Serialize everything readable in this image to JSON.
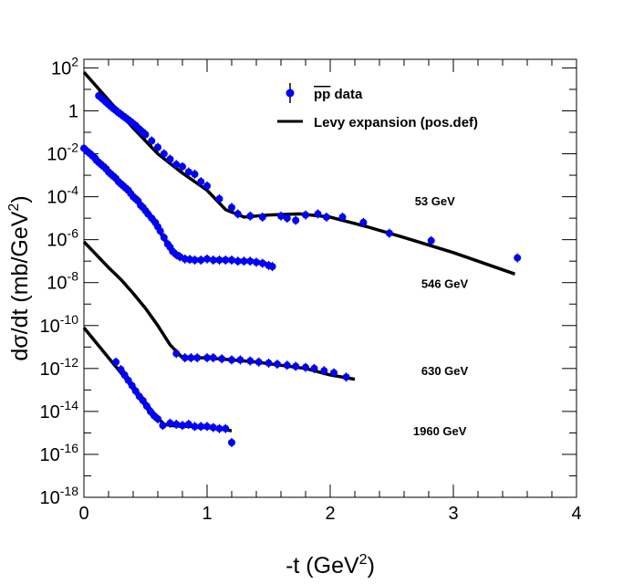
{
  "chart_data": {
    "type": "scatter",
    "xlabel": "-t (GeV",
    "xlabel_sup": "2",
    "xlabel_close": ")",
    "ylabel": "dσ/dt (mb/GeV",
    "ylabel_sup": "2",
    "ylabel_close": ")",
    "xlim": [
      0,
      4
    ],
    "ylim_log10": [
      -18,
      2.4
    ],
    "yscale": "log",
    "x_ticks": [
      {
        "value": 0,
        "label": "0"
      },
      {
        "value": 1,
        "label": "1"
      },
      {
        "value": 2,
        "label": "2"
      },
      {
        "value": 3,
        "label": "3"
      },
      {
        "value": 4,
        "label": "4"
      }
    ],
    "y_ticks": [
      {
        "exp": 2,
        "base": "10",
        "sup": "2"
      },
      {
        "exp": 0,
        "base": "1",
        "sup": ""
      },
      {
        "exp": -2,
        "base": "10",
        "sup": "-2"
      },
      {
        "exp": -4,
        "base": "10",
        "sup": "-4"
      },
      {
        "exp": -6,
        "base": "10",
        "sup": "-6"
      },
      {
        "exp": -8,
        "base": "10",
        "sup": "-8"
      },
      {
        "exp": -10,
        "base": "10",
        "sup": "-10"
      },
      {
        "exp": -12,
        "base": "10",
        "sup": "-12"
      },
      {
        "exp": -14,
        "base": "10",
        "sup": "-14"
      },
      {
        "exp": -16,
        "base": "10",
        "sup": "-16"
      },
      {
        "exp": -18,
        "base": "10",
        "sup": "-18"
      }
    ],
    "legend": {
      "position": "top-right",
      "data_label_main": "pp",
      "data_label_tail": " data",
      "fit_label": "Levy expansion (pos.def)"
    },
    "colors": {
      "data": "#0000ff",
      "fit": "#000000"
    },
    "series": [
      {
        "name": "53 GeV",
        "label_at": {
          "x": 2.85,
          "log10y": -4.4
        },
        "fit": [
          [
            0,
            1.8
          ],
          [
            0.2,
            0.5
          ],
          [
            0.4,
            -0.8
          ],
          [
            0.6,
            -2
          ],
          [
            0.8,
            -2.9
          ],
          [
            1.0,
            -3.7
          ],
          [
            1.15,
            -4.6
          ],
          [
            1.3,
            -4.95
          ],
          [
            1.5,
            -4.85
          ],
          [
            1.75,
            -4.8
          ],
          [
            2.0,
            -4.95
          ],
          [
            2.3,
            -5.4
          ],
          [
            2.6,
            -5.9
          ],
          [
            3.0,
            -6.6
          ],
          [
            3.5,
            -7.6
          ]
        ],
        "points": [
          [
            0.12,
            0.7
          ],
          [
            0.15,
            0.55
          ],
          [
            0.18,
            0.4
          ],
          [
            0.2,
            0.3
          ],
          [
            0.22,
            0.2
          ],
          [
            0.24,
            0.1
          ],
          [
            0.26,
            0.02
          ],
          [
            0.28,
            -0.08
          ],
          [
            0.3,
            -0.16
          ],
          [
            0.32,
            -0.25
          ],
          [
            0.34,
            -0.33
          ],
          [
            0.36,
            -0.42
          ],
          [
            0.38,
            -0.5
          ],
          [
            0.4,
            -0.6
          ],
          [
            0.42,
            -0.68
          ],
          [
            0.45,
            -0.85
          ],
          [
            0.48,
            -1.0
          ],
          [
            0.5,
            -1.1
          ],
          [
            0.55,
            -1.4
          ],
          [
            0.6,
            -1.7
          ],
          [
            0.65,
            -2.0
          ],
          [
            0.7,
            -2.25
          ],
          [
            0.75,
            -2.5
          ],
          [
            0.8,
            -2.6
          ],
          [
            0.85,
            -2.85
          ],
          [
            0.9,
            -2.95
          ],
          [
            0.95,
            -3.3
          ],
          [
            1.0,
            -3.5
          ],
          [
            1.1,
            -4.1
          ],
          [
            1.2,
            -4.5
          ],
          [
            1.25,
            -4.8
          ],
          [
            1.35,
            -4.9
          ],
          [
            1.45,
            -4.95
          ],
          [
            1.6,
            -4.9
          ],
          [
            1.65,
            -5.0
          ],
          [
            1.72,
            -5.1
          ],
          [
            1.8,
            -4.85
          ],
          [
            1.9,
            -4.8
          ],
          [
            1.97,
            -4.95
          ],
          [
            2.1,
            -4.95
          ],
          [
            2.27,
            -5.2
          ],
          [
            2.48,
            -5.7
          ],
          [
            2.82,
            -6.05
          ],
          [
            3.52,
            -6.85
          ]
        ]
      },
      {
        "name": "546 GeV",
        "label_at": {
          "x": 2.93,
          "log10y": -8.25
        },
        "fit": [
          [
            0,
            -1.8
          ],
          [
            0.1,
            -2.3
          ],
          [
            0.2,
            -2.9
          ],
          [
            0.3,
            -3.45
          ],
          [
            0.4,
            -4.0
          ],
          [
            0.5,
            -4.7
          ],
          [
            0.6,
            -5.5
          ],
          [
            0.68,
            -6.2
          ],
          [
            0.75,
            -6.75
          ],
          [
            0.85,
            -6.95
          ],
          [
            1.0,
            -6.9
          ],
          [
            1.2,
            -6.95
          ],
          [
            1.4,
            -7.0
          ],
          [
            1.55,
            -7.2
          ]
        ],
        "points": [
          [
            0.0,
            -1.75
          ],
          [
            0.03,
            -1.9
          ],
          [
            0.05,
            -2.0
          ],
          [
            0.07,
            -2.1
          ],
          [
            0.09,
            -2.2
          ],
          [
            0.1,
            -2.3
          ],
          [
            0.12,
            -2.4
          ],
          [
            0.14,
            -2.5
          ],
          [
            0.16,
            -2.6
          ],
          [
            0.18,
            -2.7
          ],
          [
            0.2,
            -2.85
          ],
          [
            0.22,
            -2.95
          ],
          [
            0.24,
            -3.05
          ],
          [
            0.26,
            -3.15
          ],
          [
            0.28,
            -3.3
          ],
          [
            0.3,
            -3.4
          ],
          [
            0.32,
            -3.5
          ],
          [
            0.34,
            -3.6
          ],
          [
            0.36,
            -3.7
          ],
          [
            0.38,
            -3.85
          ],
          [
            0.4,
            -4.0
          ],
          [
            0.42,
            -4.1
          ],
          [
            0.44,
            -4.2
          ],
          [
            0.46,
            -4.4
          ],
          [
            0.48,
            -4.5
          ],
          [
            0.5,
            -4.65
          ],
          [
            0.52,
            -4.8
          ],
          [
            0.55,
            -5.0
          ],
          [
            0.58,
            -5.2
          ],
          [
            0.6,
            -5.4
          ],
          [
            0.62,
            -5.6
          ],
          [
            0.65,
            -5.9
          ],
          [
            0.68,
            -6.2
          ],
          [
            0.7,
            -6.35
          ],
          [
            0.72,
            -6.55
          ],
          [
            0.75,
            -6.7
          ],
          [
            0.78,
            -6.8
          ],
          [
            0.82,
            -6.9
          ],
          [
            0.86,
            -6.92
          ],
          [
            0.9,
            -6.95
          ],
          [
            0.95,
            -6.95
          ],
          [
            1.0,
            -6.9
          ],
          [
            1.05,
            -6.95
          ],
          [
            1.1,
            -6.95
          ],
          [
            1.15,
            -6.95
          ],
          [
            1.2,
            -6.95
          ],
          [
            1.25,
            -7.0
          ],
          [
            1.3,
            -7.0
          ],
          [
            1.35,
            -7.0
          ],
          [
            1.4,
            -7.05
          ],
          [
            1.45,
            -7.1
          ],
          [
            1.5,
            -7.2
          ],
          [
            1.53,
            -7.25
          ]
        ]
      },
      {
        "name": "630 GeV",
        "label_at": {
          "x": 2.93,
          "log10y": -12.3
        },
        "fit": [
          [
            0,
            -6.1
          ],
          [
            0.1,
            -6.7
          ],
          [
            0.2,
            -7.3
          ],
          [
            0.3,
            -7.85
          ],
          [
            0.4,
            -8.5
          ],
          [
            0.5,
            -9.2
          ],
          [
            0.6,
            -10.0
          ],
          [
            0.7,
            -10.9
          ],
          [
            0.75,
            -11.2
          ],
          [
            0.8,
            -11.5
          ],
          [
            0.9,
            -11.5
          ],
          [
            1.0,
            -11.5
          ],
          [
            1.2,
            -11.6
          ],
          [
            1.4,
            -11.7
          ],
          [
            1.6,
            -11.85
          ],
          [
            1.8,
            -12.0
          ],
          [
            2.0,
            -12.3
          ],
          [
            2.2,
            -12.5
          ]
        ],
        "points": [
          [
            0.75,
            -11.3
          ],
          [
            0.82,
            -11.5
          ],
          [
            0.87,
            -11.5
          ],
          [
            0.92,
            -11.5
          ],
          [
            1.0,
            -11.5
          ],
          [
            1.05,
            -11.5
          ],
          [
            1.12,
            -11.55
          ],
          [
            1.2,
            -11.6
          ],
          [
            1.27,
            -11.6
          ],
          [
            1.35,
            -11.65
          ],
          [
            1.42,
            -11.7
          ],
          [
            1.5,
            -11.75
          ],
          [
            1.57,
            -11.8
          ],
          [
            1.65,
            -11.85
          ],
          [
            1.72,
            -11.9
          ],
          [
            1.8,
            -11.95
          ],
          [
            1.87,
            -12.0
          ],
          [
            1.95,
            -12.1
          ],
          [
            2.03,
            -12.2
          ],
          [
            2.13,
            -12.4
          ]
        ]
      },
      {
        "name": "1960 GeV",
        "label_at": {
          "x": 2.89,
          "log10y": -15.1
        },
        "fit": [
          [
            0,
            -10.1
          ],
          [
            0.1,
            -10.8
          ],
          [
            0.2,
            -11.5
          ],
          [
            0.3,
            -12.2
          ],
          [
            0.4,
            -12.9
          ],
          [
            0.5,
            -13.6
          ],
          [
            0.6,
            -14.3
          ],
          [
            0.65,
            -14.6
          ],
          [
            0.7,
            -14.65
          ],
          [
            0.8,
            -14.7
          ],
          [
            0.9,
            -14.7
          ],
          [
            1.0,
            -14.75
          ],
          [
            1.1,
            -14.8
          ],
          [
            1.2,
            -14.9
          ]
        ],
        "points": [
          [
            0.26,
            -11.7
          ],
          [
            0.3,
            -12.05
          ],
          [
            0.33,
            -12.3
          ],
          [
            0.36,
            -12.55
          ],
          [
            0.39,
            -12.8
          ],
          [
            0.42,
            -13.05
          ],
          [
            0.45,
            -13.3
          ],
          [
            0.48,
            -13.5
          ],
          [
            0.51,
            -13.75
          ],
          [
            0.54,
            -14.0
          ],
          [
            0.57,
            -14.2
          ],
          [
            0.6,
            -14.35
          ],
          [
            0.64,
            -14.65
          ],
          [
            0.7,
            -14.55
          ],
          [
            0.75,
            -14.6
          ],
          [
            0.8,
            -14.65
          ],
          [
            0.85,
            -14.6
          ],
          [
            0.9,
            -14.7
          ],
          [
            0.95,
            -14.7
          ],
          [
            1.0,
            -14.7
          ],
          [
            1.05,
            -14.75
          ],
          [
            1.1,
            -14.8
          ],
          [
            1.15,
            -14.8
          ],
          [
            1.2,
            -15.45
          ]
        ]
      }
    ]
  }
}
